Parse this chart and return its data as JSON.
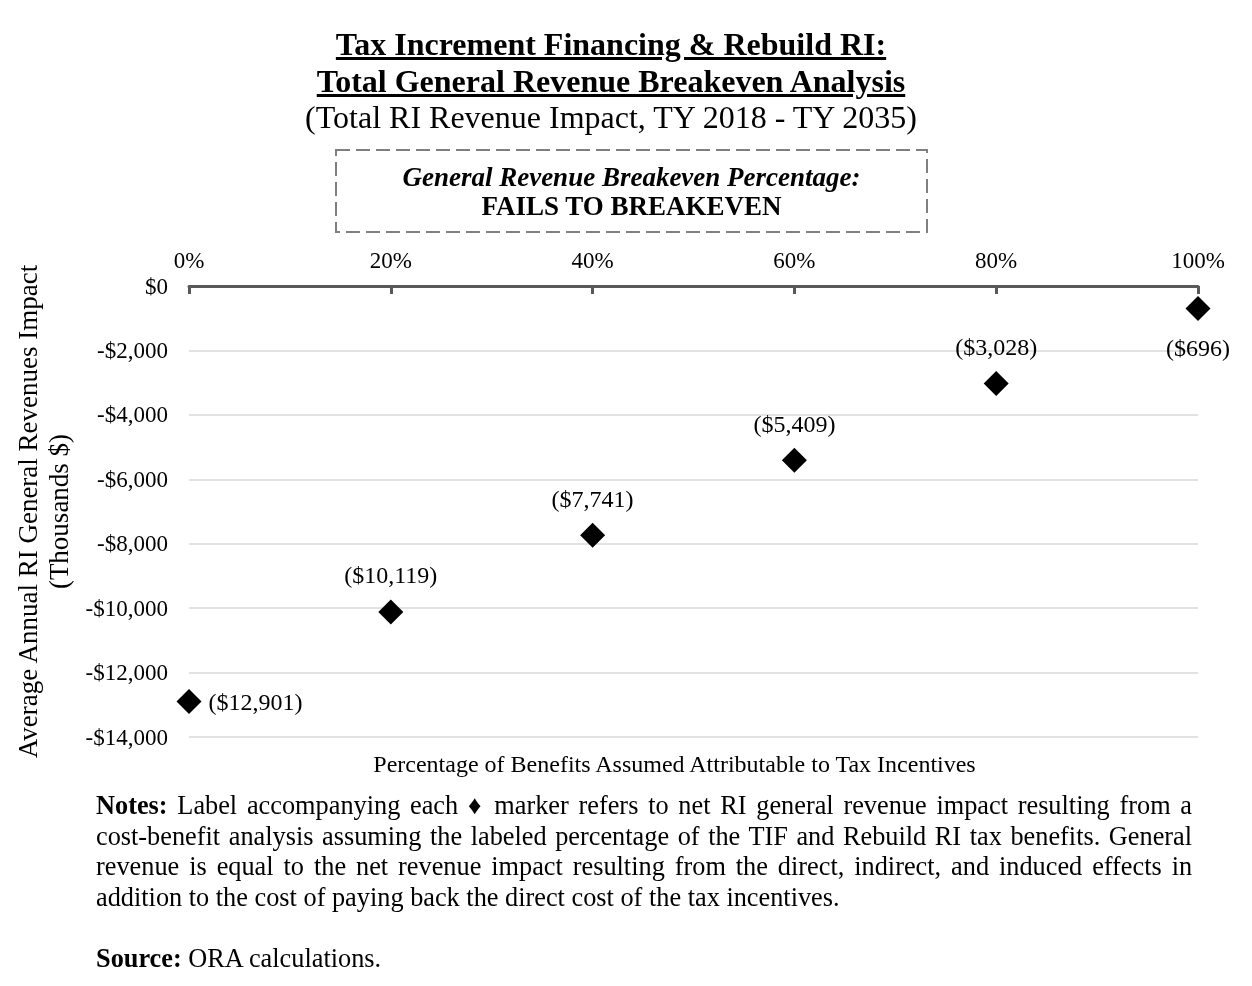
{
  "chart_data": {
    "type": "scatter",
    "title": "Tax Increment Financing & Rebuild RI:\nTotal General Revenue Breakeven Analysis",
    "subtitle": "(Total RI Revenue Impact, TY 2018 - TY 2035)",
    "xlabel": "Percentage of Benefits Assumed Attributable to Tax Incentives",
    "ylabel": "Average Annual RI General Revenues Impact\n(Thousands $)",
    "x": [
      0,
      20,
      40,
      60,
      80,
      100
    ],
    "values": [
      -12901,
      -10119,
      -7741,
      -5409,
      -3028,
      -696
    ],
    "value_labels": [
      "($12,901)",
      "($10,119)",
      "($7,741)",
      "($5,409)",
      "($3,028)",
      "($696)"
    ],
    "color": "#000000",
    "marker": "diamond",
    "grid": "y",
    "xlim": [
      0,
      100
    ],
    "xticks": [
      {
        "value": 0,
        "label": "0%"
      },
      {
        "value": 20,
        "label": "20%"
      },
      {
        "value": 40,
        "label": "40%"
      },
      {
        "value": 60,
        "label": "60%"
      },
      {
        "value": 80,
        "label": "80%"
      },
      {
        "value": 100,
        "label": "100%"
      }
    ],
    "ylim": [
      -14000,
      0
    ],
    "yticks": [
      {
        "value": 0,
        "label": "$0"
      },
      {
        "value": -2000,
        "label": "-$2,000"
      },
      {
        "value": -4000,
        "label": "-$4,000"
      },
      {
        "value": -6000,
        "label": "-$6,000"
      },
      {
        "value": -8000,
        "label": "-$8,000"
      },
      {
        "value": -10000,
        "label": "-$10,000"
      },
      {
        "value": -12000,
        "label": "-$12,000"
      },
      {
        "value": -14000,
        "label": "-$14,000"
      }
    ],
    "annotations": [
      "General Revenue Breakeven Percentage:",
      "FAILS TO BREAKEVEN",
      "Notes: Label accompanying each ♦ marker refers to net RI general revenue impact resulting from a cost-benefit analysis assuming the labeled percentage of the TIF and Rebuild RI tax benefits. General revenue is equal to the net revenue impact resulting from the direct, indirect, and induced effects in addition to the cost of paying back the direct cost of the tax incentives.",
      "Source: ORA calculations."
    ]
  }
}
